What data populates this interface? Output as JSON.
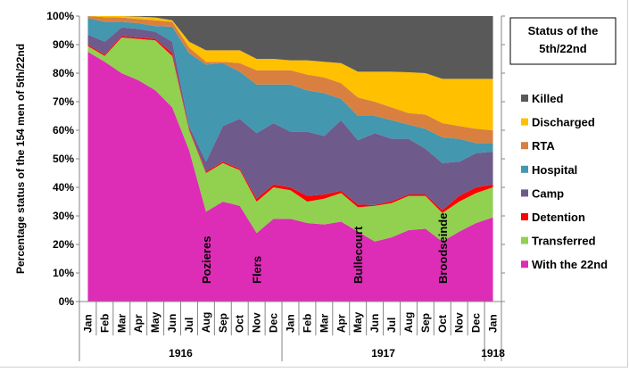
{
  "chart_data": {
    "type": "area",
    "stacked": true,
    "title": "Status of the 5th/22nd",
    "ylabel": "Percentage status of the 154  men of 5th/22nd",
    "xlabel": "",
    "ylim": [
      0,
      100
    ],
    "yticks": [
      "0%",
      "10%",
      "20%",
      "30%",
      "40%",
      "50%",
      "60%",
      "70%",
      "80%",
      "90%",
      "100%"
    ],
    "categories": [
      "Jan",
      "Feb",
      "Mar",
      "Apr",
      "May",
      "Jun",
      "Jul",
      "Aug",
      "Sep",
      "Oct",
      "Nov",
      "Dec",
      "Jan",
      "Feb",
      "Mar",
      "Apr",
      "May",
      "Jun",
      "Jul",
      "Aug",
      "Sep",
      "Oct",
      "Nov",
      "Dec",
      "Jan"
    ],
    "years": [
      {
        "label": "1916",
        "start": 0,
        "end": 11
      },
      {
        "label": "1917",
        "start": 12,
        "end": 23
      },
      {
        "label": "1918",
        "start": 24,
        "end": 24
      }
    ],
    "legend_position": "right",
    "series": [
      {
        "name": "With the 22nd",
        "color": "#DD2DB6",
        "values": [
          87.5,
          84,
          80,
          77.5,
          74,
          68,
          53,
          31.5,
          35,
          33.5,
          24,
          29,
          29,
          27.5,
          27,
          28,
          24.5,
          21,
          22.5,
          25,
          25.5,
          21,
          24.5,
          27.5,
          29.5
        ]
      },
      {
        "name": "Transferred",
        "color": "#92D050",
        "values": [
          2,
          2,
          12.5,
          14.5,
          17.5,
          18,
          7,
          13.5,
          13.5,
          12.5,
          11,
          11,
          10,
          7.5,
          9,
          10,
          8.5,
          12.5,
          12,
          12,
          11.5,
          10,
          10.5,
          10.5,
          10.5
        ]
      },
      {
        "name": "Detention",
        "color": "#FF0000",
        "values": [
          0.5,
          0.5,
          0.5,
          0.5,
          0.5,
          1,
          0.5,
          0.5,
          0.5,
          0.5,
          1,
          1,
          1,
          2,
          1.5,
          0.8,
          1,
          0.3,
          0.7,
          0.5,
          0.5,
          1,
          2,
          2,
          1
        ]
      },
      {
        "name": "Camp",
        "color": "#6F5A8C",
        "values": [
          3.5,
          4.5,
          3,
          3,
          2.5,
          4,
          1,
          3.5,
          12.5,
          17.5,
          23,
          21.5,
          19.5,
          22.5,
          20.5,
          24.7,
          22.5,
          25.2,
          21.8,
          19.5,
          16,
          16.5,
          12,
          12,
          11.5
        ]
      },
      {
        "name": "Hospital",
        "color": "#4397AE",
        "values": [
          5.8,
          7,
          2,
          2,
          2,
          5.3,
          25.5,
          34,
          22,
          16.5,
          17,
          13.5,
          16.5,
          14.5,
          15,
          7.5,
          8.5,
          6,
          6.5,
          5,
          7,
          9,
          8,
          3.5,
          3
        ]
      },
      {
        "name": "RTA",
        "color": "#D98040",
        "values": [
          0.7,
          1.6,
          1.5,
          1.5,
          2,
          1.7,
          2,
          1,
          0.5,
          3,
          5,
          5,
          5,
          5.5,
          5.5,
          5.5,
          6.5,
          5,
          4.5,
          4,
          5,
          5,
          4.5,
          5,
          4.5
        ]
      },
      {
        "name": "Discharged",
        "color": "#FFC000",
        "values": [
          0,
          0.4,
          0.5,
          0.8,
          1,
          0.5,
          2,
          4,
          4,
          4.5,
          4,
          4,
          3.5,
          5,
          5.5,
          7,
          9,
          10.5,
          12.5,
          14.3,
          14.5,
          15.5,
          16.5,
          17.5,
          18
        ]
      },
      {
        "name": "Killed",
        "color": "#595959",
        "values": [
          0,
          0,
          0,
          0.2,
          0.5,
          1.5,
          9,
          12,
          12,
          12,
          15,
          15,
          15.5,
          15.5,
          16,
          16.5,
          19.5,
          19.5,
          19.5,
          19.7,
          20,
          22,
          22,
          22,
          22
        ]
      }
    ],
    "annotations": [
      {
        "text": "Pozieres",
        "index": 7
      },
      {
        "text": "Flers",
        "index": 10
      },
      {
        "text": "Bullecourt",
        "index": 16
      },
      {
        "text": "Broodseinde",
        "index": 21
      }
    ]
  }
}
